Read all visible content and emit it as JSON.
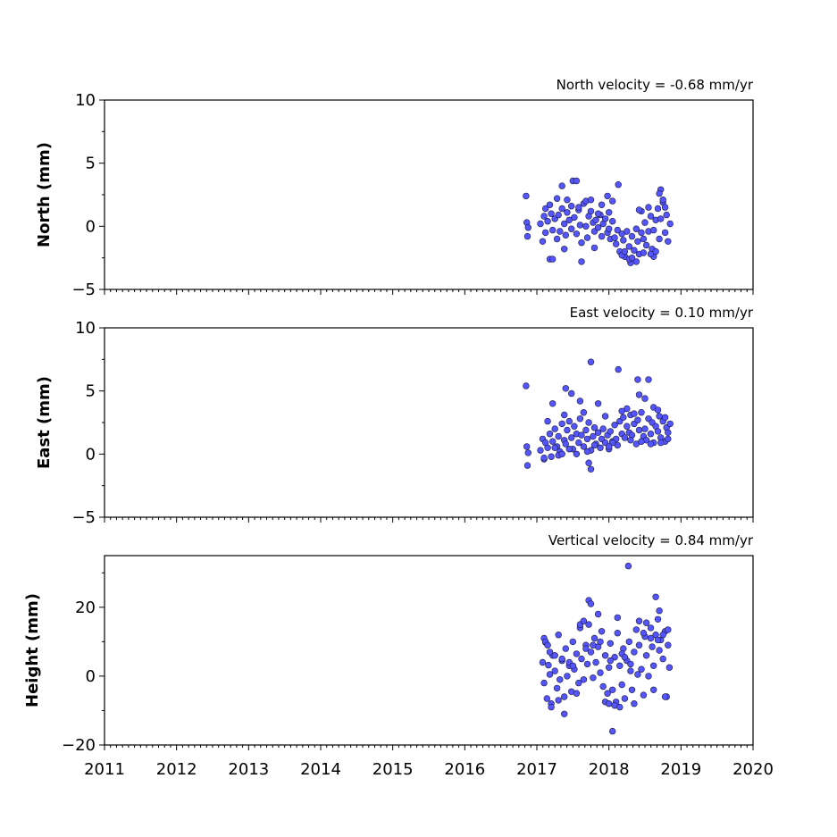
{
  "chart_data": [
    {
      "type": "scatter",
      "ylabel": "North (mm)",
      "annotation": "North velocity = -0.68 mm/yr",
      "xlim": [
        2011,
        2020
      ],
      "ylim": [
        -5,
        10
      ],
      "yticks": [
        -5,
        0,
        5,
        10
      ],
      "ytick_labels": [
        "−5",
        "0",
        "5",
        "10"
      ],
      "xticks": [
        2011,
        2012,
        2013,
        2014,
        2015,
        2016,
        2017,
        2018,
        2019,
        2020
      ],
      "xtick_labels": [],
      "grid": false,
      "marker_color": "#5555ff",
      "marker_edge": "#1a1a40",
      "series": [
        {
          "x": [
            2016.85,
            2016.86,
            2016.87,
            2016.88,
            2017.05,
            2017.08,
            2017.1,
            2017.12,
            2017.15,
            2017.18,
            2017.2,
            2017.22,
            2017.25,
            2017.28,
            2017.3,
            2017.32,
            2017.35,
            2017.38,
            2017.4,
            2017.42,
            2017.45,
            2017.48,
            2017.5,
            2017.52,
            2017.55,
            2017.58,
            2017.6,
            2017.62,
            2017.65,
            2017.68,
            2017.7,
            2017.72,
            2017.75,
            2017.78,
            2017.8,
            2017.82,
            2017.85,
            2017.88,
            2017.9,
            2017.92,
            2017.95,
            2017.98,
            2018.0,
            2018.02,
            2018.05,
            2018.08,
            2018.1,
            2018.12,
            2018.15,
            2018.18,
            2018.2,
            2018.22,
            2018.25,
            2018.28,
            2018.3,
            2018.32,
            2018.35,
            2018.38,
            2018.4,
            2018.42,
            2018.45,
            2018.48,
            2018.5,
            2018.52,
            2018.55,
            2018.58,
            2018.6,
            2018.62,
            2018.65,
            2018.68,
            2018.7,
            2018.72,
            2018.75,
            2018.78,
            2018.8,
            2018.82,
            2018.85,
            2017.22,
            2017.55,
            2017.62,
            2017.35,
            2018.13,
            2017.98,
            2018.28,
            2018.38,
            2018.72,
            2018.7,
            2018.62,
            2017.12,
            2017.42,
            2017.68,
            2017.9,
            2018.05,
            2018.45,
            2018.55,
            2017.28,
            2017.48,
            2017.75,
            2017.85,
            2018.18,
            2018.32,
            2018.48,
            2018.65,
            2018.78,
            2017.18,
            2017.38,
            2017.58,
            2017.8,
            2018.0,
            2018.22,
            2018.42,
            2018.58,
            2018.75
          ],
          "y": [
            2.4,
            0.3,
            -0.8,
            -0.1,
            0.2,
            -1.2,
            0.8,
            -0.5,
            0.4,
            -2.6,
            1.0,
            -0.3,
            0.6,
            -1.0,
            0.9,
            -0.4,
            1.4,
            0.2,
            -0.7,
            1.1,
            0.5,
            -0.2,
            3.6,
            0.7,
            -0.6,
            1.3,
            0.1,
            -1.3,
            1.8,
            0.0,
            -0.9,
            0.8,
            1.2,
            0.3,
            -0.4,
            0.5,
            -0.1,
            0.9,
            -0.8,
            0.2,
            0.6,
            -0.5,
            -0.2,
            -1.0,
            0.4,
            -0.9,
            -1.4,
            -0.3,
            -2.0,
            -0.6,
            -1.1,
            -2.4,
            -0.4,
            -1.6,
            -2.9,
            -0.8,
            -1.9,
            -0.2,
            -1.2,
            -2.2,
            -0.5,
            -1.0,
            0.3,
            -1.5,
            -0.4,
            0.8,
            -1.8,
            -0.3,
            0.5,
            1.4,
            -1.0,
            0.6,
            1.9,
            -0.5,
            0.9,
            -1.2,
            0.2,
            -2.6,
            3.6,
            -2.8,
            3.2,
            3.3,
            2.4,
            -2.6,
            -2.8,
            2.9,
            2.6,
            -2.4,
            1.4,
            2.1,
            2.0,
            1.7,
            2.0,
            1.2,
            1.5,
            2.2,
            1.6,
            2.1,
            1.0,
            -2.3,
            -2.5,
            -2.1,
            -2.0,
            1.5,
            1.7,
            -1.8,
            1.5,
            -1.7,
            1.1,
            -2.0,
            1.3,
            -2.2,
            2.1
          ]
        }
      ]
    },
    {
      "type": "scatter",
      "ylabel": "East (mm)",
      "annotation": "East velocity = 0.10 mm/yr",
      "xlim": [
        2011,
        2020
      ],
      "ylim": [
        -5,
        10
      ],
      "yticks": [
        -5,
        0,
        5,
        10
      ],
      "ytick_labels": [
        "−5",
        "0",
        "5",
        "10"
      ],
      "xticks": [
        2011,
        2012,
        2013,
        2014,
        2015,
        2016,
        2017,
        2018,
        2019,
        2020
      ],
      "xtick_labels": [],
      "grid": false,
      "marker_color": "#5555ff",
      "marker_edge": "#1a1a40",
      "series": [
        {
          "x": [
            2016.85,
            2016.86,
            2016.87,
            2016.88,
            2017.05,
            2017.08,
            2017.1,
            2017.12,
            2017.15,
            2017.18,
            2017.2,
            2017.22,
            2017.25,
            2017.28,
            2017.3,
            2017.32,
            2017.35,
            2017.38,
            2017.4,
            2017.42,
            2017.45,
            2017.48,
            2017.5,
            2017.52,
            2017.55,
            2017.58,
            2017.6,
            2017.62,
            2017.65,
            2017.68,
            2017.7,
            2017.72,
            2017.75,
            2017.78,
            2017.8,
            2017.82,
            2017.85,
            2017.88,
            2017.9,
            2017.92,
            2017.95,
            2017.98,
            2018.0,
            2018.02,
            2018.05,
            2018.08,
            2018.1,
            2018.12,
            2018.15,
            2018.18,
            2018.2,
            2018.22,
            2018.25,
            2018.28,
            2018.3,
            2018.32,
            2018.35,
            2018.38,
            2018.4,
            2018.42,
            2018.45,
            2018.48,
            2018.5,
            2018.52,
            2018.55,
            2018.58,
            2018.6,
            2018.62,
            2018.65,
            2018.68,
            2018.7,
            2018.72,
            2018.75,
            2018.78,
            2018.8,
            2018.82,
            2018.85,
            2017.75,
            2018.13,
            2018.4,
            2018.55,
            2017.4,
            2017.48,
            2017.22,
            2017.6,
            2018.42,
            2018.5,
            2017.75,
            2017.72,
            2017.3,
            2017.55,
            2017.85,
            2018.25,
            2018.62,
            2018.78,
            2017.15,
            2017.38,
            2017.65,
            2017.95,
            2018.18,
            2018.35,
            2018.68,
            2017.25,
            2017.45,
            2017.8,
            2018.05,
            2018.3,
            2018.58,
            2018.82,
            2017.1,
            2017.35,
            2017.7,
            2018.0,
            2018.45,
            2018.72
          ],
          "y": [
            5.4,
            0.6,
            -0.9,
            0.1,
            0.3,
            1.2,
            -0.4,
            0.9,
            0.5,
            1.6,
            -0.2,
            1.0,
            2.0,
            0.6,
            1.4,
            0.2,
            2.4,
            1.1,
            0.8,
            1.9,
            2.6,
            1.3,
            0.4,
            2.2,
            1.6,
            0.9,
            2.8,
            1.5,
            0.6,
            1.9,
            1.2,
            2.5,
            0.3,
            1.4,
            2.1,
            0.8,
            1.7,
            0.5,
            1.2,
            2.0,
            0.9,
            1.5,
            0.4,
            1.8,
            1.0,
            2.3,
            1.2,
            0.7,
            2.6,
            1.6,
            2.9,
            1.3,
            2.2,
            1.7,
            3.1,
            1.5,
            2.4,
            0.8,
            2.7,
            1.9,
            3.3,
            1.4,
            2.0,
            1.1,
            2.8,
            1.6,
            2.5,
            0.9,
            2.2,
            1.8,
            3.0,
            1.3,
            2.6,
            1.0,
            2.1,
            1.7,
            2.4,
            7.3,
            6.7,
            5.9,
            5.9,
            5.2,
            4.8,
            4.0,
            4.2,
            4.7,
            4.4,
            -1.2,
            -0.7,
            -0.1,
            0.0,
            4.0,
            3.6,
            3.7,
            2.9,
            2.6,
            3.1,
            3.3,
            3.0,
            3.4,
            3.2,
            3.5,
            0.5,
            0.4,
            0.7,
            0.9,
            1.1,
            0.8,
            1.2,
            -0.3,
            0.0,
            0.2,
            0.6,
            1.0,
            0.9
          ]
        }
      ]
    },
    {
      "type": "scatter",
      "ylabel": "Height (mm)",
      "annotation": "Vertical velocity = 0.84 mm/yr",
      "xlim": [
        2011,
        2020
      ],
      "ylim": [
        -20,
        35
      ],
      "yticks": [
        -20,
        0,
        20
      ],
      "ytick_labels": [
        "−20",
        "0",
        "20"
      ],
      "xticks": [
        2011,
        2012,
        2013,
        2014,
        2015,
        2016,
        2017,
        2018,
        2019,
        2020
      ],
      "xtick_labels": [
        "2011",
        "2012",
        "2013",
        "2014",
        "2015",
        "2016",
        "2017",
        "2018",
        "2019",
        "2020"
      ],
      "grid": false,
      "marker_color": "#5555ff",
      "marker_edge": "#1a1a40",
      "series": [
        {
          "x": [
            2017.08,
            2017.1,
            2017.12,
            2017.14,
            2017.16,
            2017.18,
            2017.2,
            2017.22,
            2017.25,
            2017.28,
            2017.3,
            2017.32,
            2017.35,
            2017.38,
            2017.4,
            2017.42,
            2017.45,
            2017.48,
            2017.5,
            2017.52,
            2017.55,
            2017.58,
            2017.6,
            2017.62,
            2017.65,
            2017.68,
            2017.7,
            2017.72,
            2017.75,
            2017.78,
            2017.8,
            2017.82,
            2017.85,
            2017.88,
            2017.9,
            2017.92,
            2017.95,
            2017.98,
            2018.0,
            2018.02,
            2018.05,
            2018.08,
            2018.1,
            2018.12,
            2018.15,
            2018.18,
            2018.2,
            2018.22,
            2018.25,
            2018.28,
            2018.3,
            2018.32,
            2018.35,
            2018.38,
            2018.4,
            2018.42,
            2018.45,
            2018.48,
            2018.5,
            2018.52,
            2018.55,
            2018.58,
            2018.6,
            2018.62,
            2018.65,
            2018.68,
            2018.7,
            2018.72,
            2018.75,
            2018.78,
            2018.8,
            2018.82,
            2018.84,
            2018.27,
            2018.05,
            2017.38,
            2018.65,
            2017.72,
            2017.75,
            2018.12,
            2018.42,
            2018.7,
            2017.1,
            2017.12,
            2017.15,
            2017.2,
            2017.3,
            2017.55,
            2017.6,
            2017.65,
            2017.85,
            2017.95,
            2018.0,
            2018.08,
            2018.15,
            2018.35,
            2018.52,
            2018.62,
            2018.78,
            2018.82,
            2017.18,
            2017.25,
            2017.35,
            2017.45,
            2017.5,
            2017.68,
            2017.78,
            2017.88,
            2018.02,
            2018.18,
            2018.22,
            2018.3,
            2018.48,
            2018.58,
            2018.68,
            2018.75
          ],
          "y": [
            4.0,
            -2.0,
            9.8,
            -6.5,
            3.2,
            0.5,
            -8.0,
            6.0,
            1.5,
            -3.5,
            12.0,
            -1.0,
            4.5,
            -6.0,
            8.0,
            0.0,
            3.0,
            -4.5,
            10.0,
            2.0,
            6.5,
            -2.0,
            14.0,
            5.0,
            -1.0,
            9.0,
            3.5,
            15.0,
            7.0,
            -0.5,
            11.0,
            4.0,
            8.5,
            1.0,
            13.0,
            -3.0,
            6.0,
            -5.0,
            2.5,
            9.5,
            -4.0,
            5.5,
            -7.5,
            12.5,
            3.0,
            -2.5,
            8.0,
            -6.5,
            4.5,
            10.0,
            1.5,
            -4.0,
            7.0,
            13.5,
            0.5,
            9.0,
            2.0,
            -5.5,
            11.5,
            6.0,
            0.0,
            14.0,
            8.5,
            3.0,
            12.0,
            16.5,
            7.5,
            10.5,
            5.0,
            13.0,
            -6.0,
            9.0,
            2.5,
            32.0,
            -16.0,
            -11.0,
            23.0,
            22.0,
            21.0,
            17.0,
            16.0,
            19.0,
            11.0,
            10.0,
            9.0,
            -9.0,
            -7.0,
            -5.0,
            15.0,
            16.0,
            18.0,
            -7.5,
            -8.0,
            -8.5,
            -9.0,
            -8.0,
            15.5,
            -4.0,
            -6.0,
            13.5,
            7.0,
            6.0,
            5.0,
            4.0,
            3.0,
            8.0,
            9.0,
            10.0,
            4.5,
            6.5,
            5.5,
            3.5,
            12.5,
            11.0,
            10.5,
            12.0
          ]
        }
      ]
    }
  ]
}
